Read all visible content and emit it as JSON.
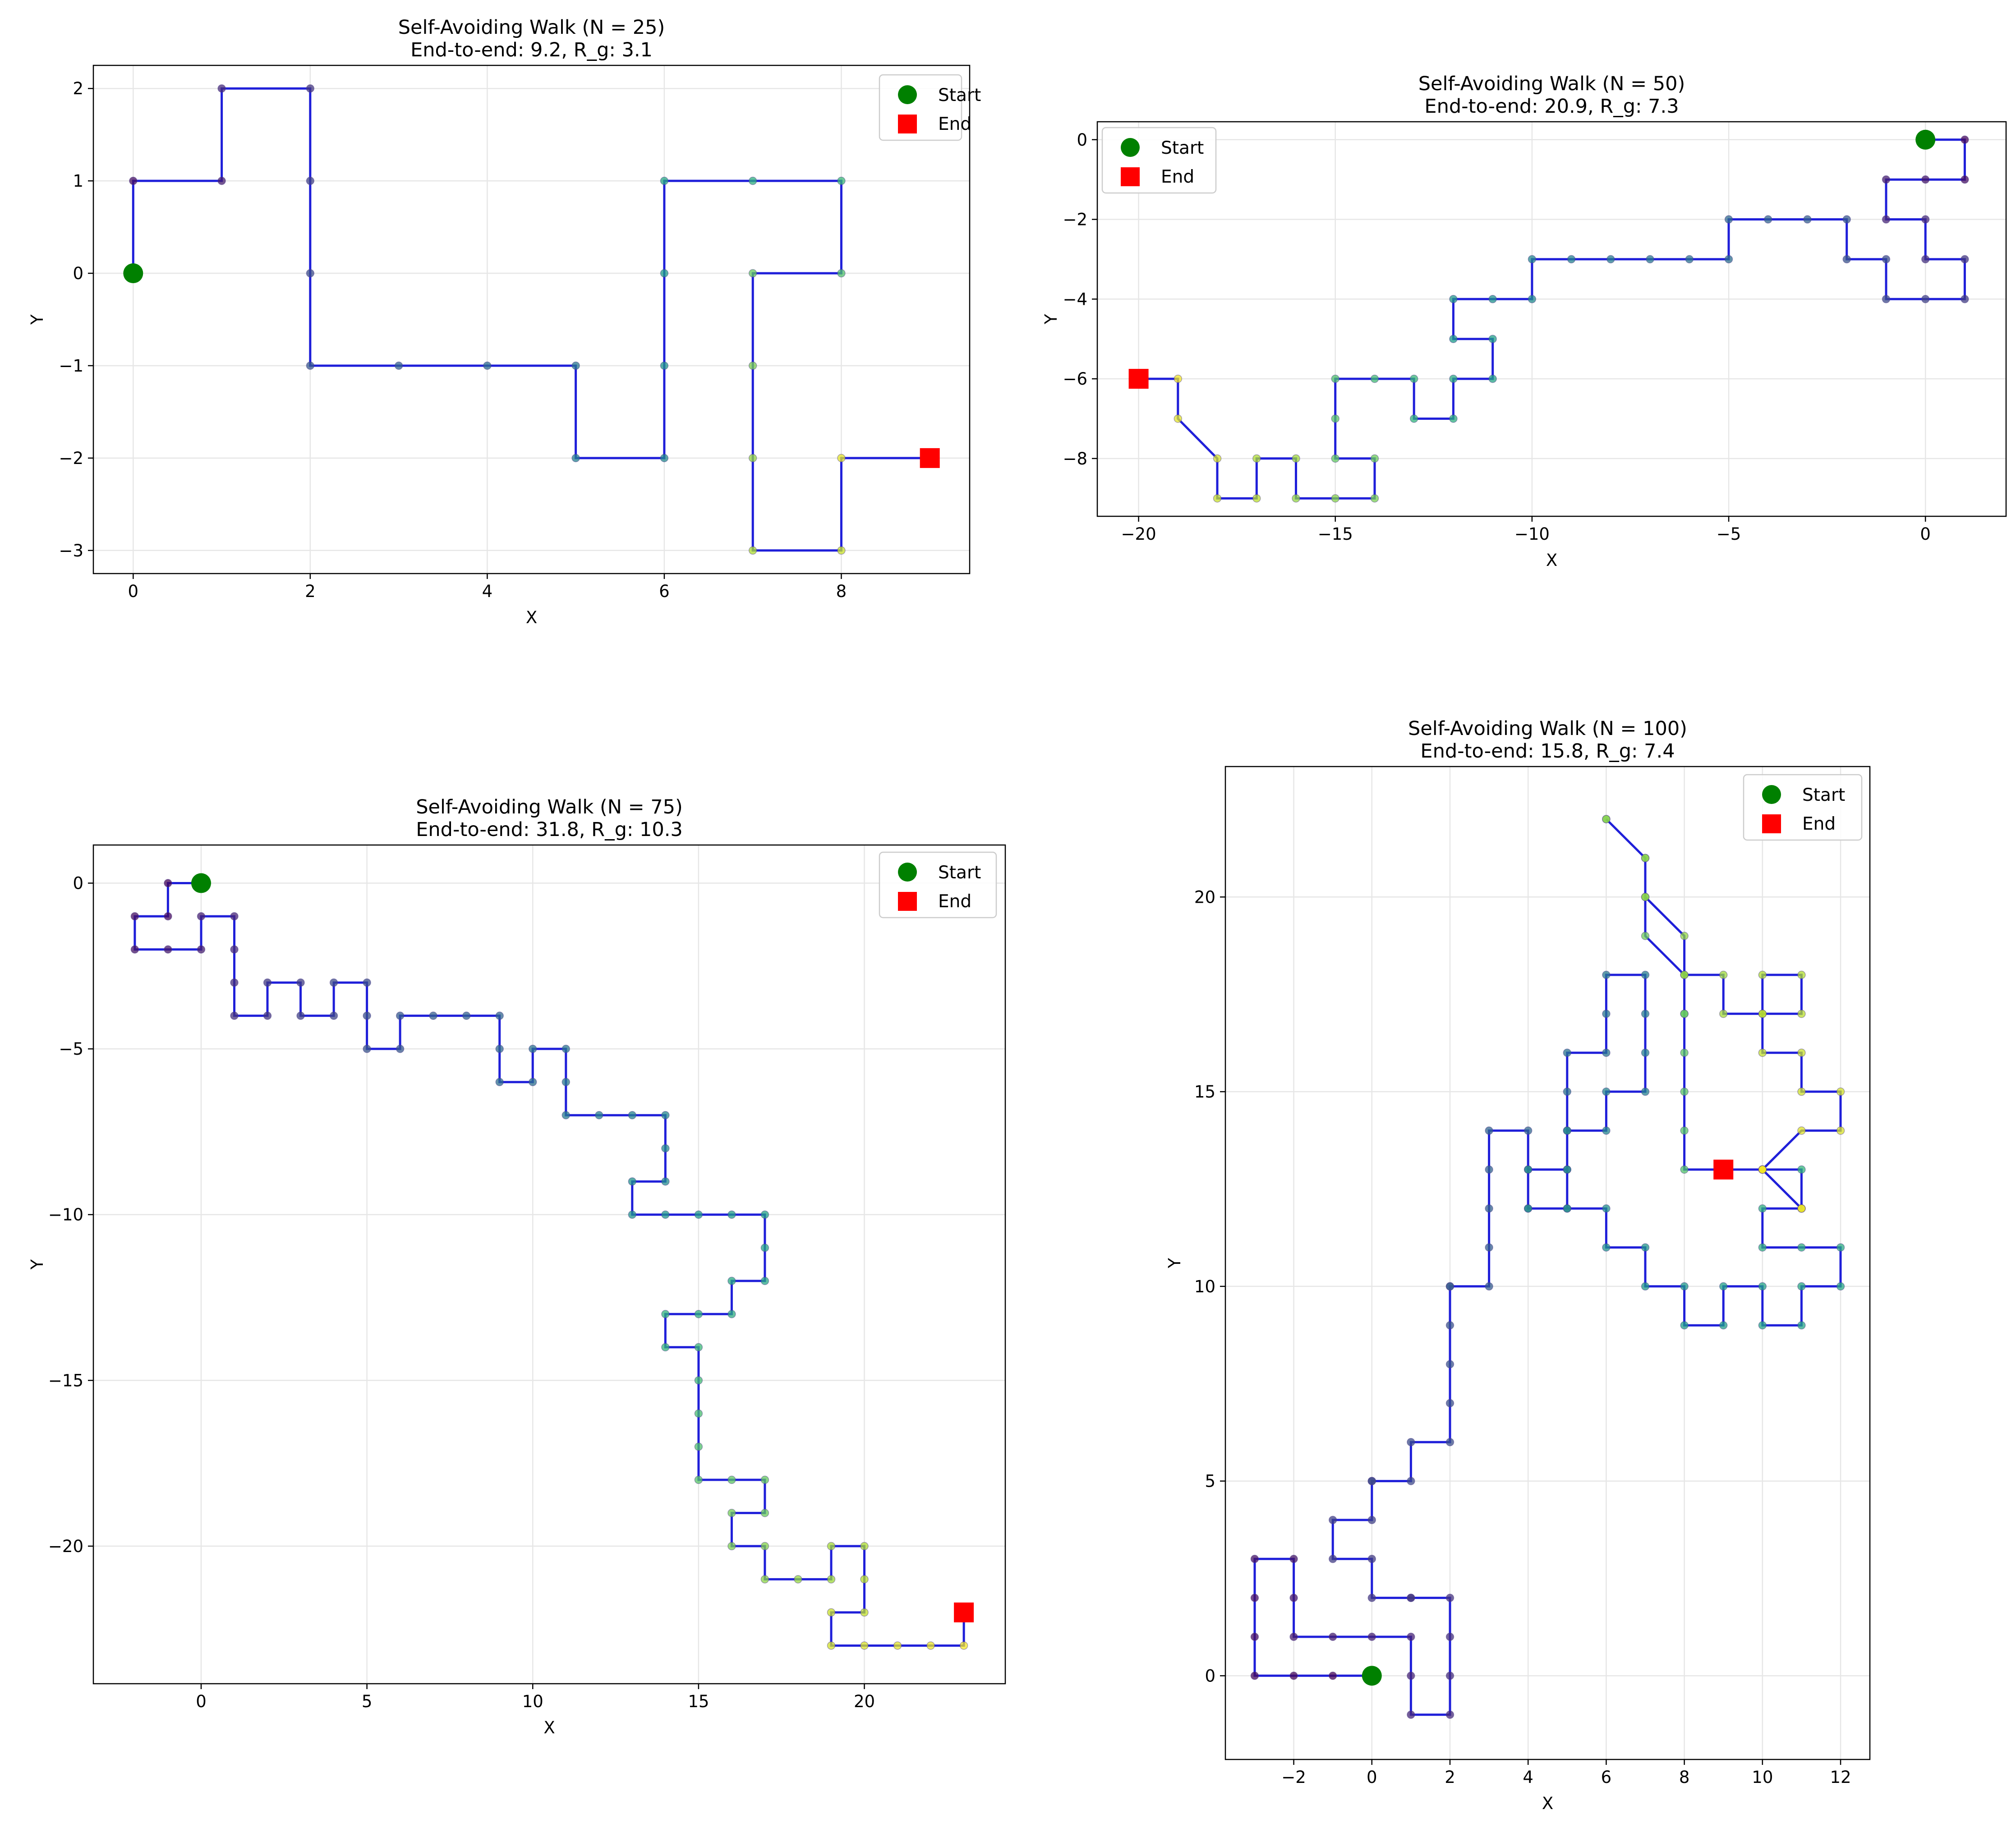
{
  "chart_data": [
    {
      "type": "line",
      "title": "Self-Avoiding Walk (N = 25)",
      "subtitle": "End-to-end: 9.2, R_g: 3.1",
      "xlabel": "X",
      "ylabel": "Y",
      "xlim": [
        -0.45,
        9.45
      ],
      "ylim": [
        -3.25,
        2.25
      ],
      "xticks": [
        0,
        2,
        4,
        6,
        8
      ],
      "yticks": [
        -3,
        -2,
        -1,
        0,
        1,
        2
      ],
      "grid": true,
      "legend": "top-right",
      "legend_entries": [
        "Start",
        "End"
      ],
      "colors": {
        "path": "#1f1fd9",
        "start": "#008000",
        "end": "#ff0000"
      },
      "x": [
        0,
        0,
        1,
        1,
        2,
        2,
        2,
        2,
        3,
        4,
        5,
        5,
        6,
        6,
        6,
        6,
        7,
        8,
        8,
        7,
        7,
        7,
        7,
        8,
        8,
        9
      ],
      "y": [
        0,
        1,
        1,
        2,
        2,
        1,
        0,
        -1,
        -1,
        -1,
        -1,
        -2,
        -2,
        -1,
        0,
        1,
        1,
        1,
        0,
        0,
        -1,
        -2,
        -3,
        -3,
        -2,
        -2
      ]
    },
    {
      "type": "line",
      "title": "Self-Avoiding Walk (N = 50)",
      "subtitle": "End-to-end: 20.9, R_g: 7.3",
      "xlabel": "X",
      "ylabel": "Y",
      "xlim": [
        -21.05,
        2.05
      ],
      "ylim": [
        -9.45,
        0.45
      ],
      "xticks": [
        -20,
        -15,
        -10,
        -5,
        0
      ],
      "yticks": [
        -8,
        -6,
        -4,
        -2,
        0
      ],
      "grid": true,
      "legend": "top-left",
      "legend_entries": [
        "Start",
        "End"
      ],
      "colors": {
        "path": "#1f1fd9",
        "start": "#008000",
        "end": "#ff0000"
      },
      "x": [
        0,
        1,
        1,
        0,
        -1,
        -1,
        0,
        0,
        1,
        1,
        0,
        -1,
        -1,
        -2,
        -2,
        -3,
        -4,
        -5,
        -5,
        -6,
        -7,
        -8,
        -9,
        -10,
        -10,
        -11,
        -12,
        -12,
        -11,
        -11,
        -12,
        -12,
        -13,
        -13,
        -14,
        -15,
        -15,
        -15,
        -14,
        -14,
        -15,
        -16,
        -16,
        -17,
        -17,
        -18,
        -18,
        -19,
        -19,
        -20
      ],
      "y": [
        0,
        0,
        -1,
        -1,
        -1,
        -2,
        -2,
        -3,
        -3,
        -4,
        -4,
        -4,
        -3,
        -3,
        -2,
        -2,
        -2,
        -2,
        -3,
        -3,
        -3,
        -3,
        -3,
        -3,
        -4,
        -4,
        -4,
        -5,
        -5,
        -6,
        -6,
        -7,
        -7,
        -6,
        -6,
        -6,
        -7,
        -8,
        -8,
        -9,
        -9,
        -9,
        -8,
        -8,
        -9,
        -9,
        -8,
        -7,
        -6,
        -6
      ]
    },
    {
      "type": "line",
      "title": "Self-Avoiding Walk (N = 75)",
      "subtitle": "End-to-end: 31.8, R_g: 10.3",
      "xlabel": "X",
      "ylabel": "Y",
      "xlim": [
        -3.25,
        24.25
      ],
      "ylim": [
        -24.15,
        1.15
      ],
      "xticks": [
        0,
        5,
        10,
        15,
        20
      ],
      "yticks": [
        -20,
        -15,
        -10,
        -5,
        0
      ],
      "grid": true,
      "legend": "top-right",
      "legend_entries": [
        "Start",
        "End"
      ],
      "colors": {
        "path": "#1f1fd9",
        "start": "#008000",
        "end": "#ff0000"
      },
      "x": [
        0,
        -1,
        -1,
        -2,
        -2,
        -1,
        0,
        0,
        1,
        1,
        1,
        1,
        2,
        2,
        3,
        3,
        4,
        4,
        5,
        5,
        5,
        6,
        6,
        7,
        8,
        9,
        9,
        9,
        10,
        10,
        11,
        11,
        11,
        12,
        13,
        14,
        14,
        14,
        13,
        13,
        14,
        15,
        16,
        17,
        17,
        17,
        16,
        16,
        15,
        14,
        14,
        15,
        15,
        15,
        15,
        15,
        16,
        17,
        17,
        16,
        16,
        17,
        17,
        18,
        19,
        19,
        20,
        20,
        20,
        19,
        19,
        20,
        21,
        22,
        23,
        23
      ],
      "y": [
        0,
        0,
        -1,
        -1,
        -2,
        -2,
        -2,
        -1,
        -1,
        -2,
        -3,
        -4,
        -4,
        -3,
        -3,
        -4,
        -4,
        -3,
        -3,
        -4,
        -5,
        -5,
        -4,
        -4,
        -4,
        -4,
        -5,
        -6,
        -6,
        -5,
        -5,
        -6,
        -7,
        -7,
        -7,
        -7,
        -8,
        -9,
        -9,
        -10,
        -10,
        -10,
        -10,
        -10,
        -11,
        -12,
        -12,
        -13,
        -13,
        -13,
        -14,
        -14,
        -15,
        -16,
        -17,
        -18,
        -18,
        -18,
        -19,
        -19,
        -20,
        -20,
        -21,
        -21,
        -21,
        -20,
        -20,
        -21,
        -22,
        -22,
        -23,
        -23,
        -23,
        -23,
        -23,
        -22
      ]
    },
    {
      "type": "line",
      "title": "Self-Avoiding Walk (N = 100)",
      "subtitle": "End-to-end: 15.8, R_g: 7.4",
      "xlabel": "X",
      "ylabel": "Y",
      "xlim": [
        -3.75,
        12.75
      ],
      "ylim": [
        -2.15,
        23.35
      ],
      "xticks": [
        -2,
        0,
        2,
        4,
        6,
        8,
        10,
        12
      ],
      "yticks": [
        0,
        5,
        10,
        15,
        20
      ],
      "grid": true,
      "legend": "top-right",
      "legend_entries": [
        "Start",
        "End"
      ],
      "colors": {
        "path": "#1f1fd9",
        "start": "#008000",
        "end": "#ff0000"
      },
      "x": [
        0,
        -1,
        -2,
        -3,
        -3,
        -3,
        -3,
        -2,
        -2,
        -2,
        -1,
        0,
        1,
        1,
        1,
        2,
        2,
        2,
        2,
        1,
        1,
        0,
        0,
        -1,
        -1,
        0,
        0,
        0,
        1,
        1,
        2,
        2,
        2,
        2,
        2,
        2,
        3,
        3,
        3,
        3,
        3,
        4,
        4,
        4,
        5,
        5,
        5,
        5,
        5,
        6,
        6,
        6,
        7,
        7,
        7,
        7,
        6,
        6,
        5,
        5,
        4,
        4,
        5,
        6,
        6,
        7,
        7,
        8,
        8,
        9,
        9,
        10,
        10,
        11,
        11,
        12,
        12,
        11,
        10,
        10,
        11,
        11,
        10,
        9,
        9,
        9,
        9,
        9,
        9,
        8,
        8,
        8,
        8,
        8,
        8,
        8,
        7,
        7,
        7,
        6,
        6,
        7,
        7,
        8,
        8,
        9,
        9,
        10,
        10,
        11,
        11,
        10,
        10,
        11,
        11,
        12,
        12,
        11,
        10,
        10,
        11,
        11,
        10,
        9
      ],
      "y": [
        0,
        0,
        0,
        0,
        1,
        2,
        3,
        3,
        2,
        1,
        1,
        1,
        1,
        0,
        -1,
        -1,
        0,
        1,
        2,
        2,
        2,
        2,
        3,
        3,
        4,
        4,
        5,
        5,
        5,
        6,
        6,
        7,
        8,
        9,
        10,
        10,
        10,
        11,
        12,
        13,
        14,
        14,
        13,
        12,
        12,
        13,
        14,
        15,
        16,
        16,
        17,
        18,
        18,
        17,
        16,
        15,
        15,
        14,
        14,
        13,
        13,
        12,
        12,
        12,
        11,
        11,
        10,
        10,
        9,
        9,
        10,
        10,
        9,
        9,
        10,
        10,
        11,
        11,
        11,
        12,
        12,
        13,
        13,
        13,
        13,
        13,
        13,
        13,
        13,
        13,
        14,
        15,
        16,
        17,
        17,
        18,
        19,
        20,
        21,
        22,
        22,
        21,
        20,
        19,
        18,
        18,
        17,
        17,
        18,
        18,
        17,
        17,
        16,
        16,
        15,
        15,
        14,
        14,
        13,
        13,
        12,
        12,
        13,
        13
      ]
    }
  ]
}
